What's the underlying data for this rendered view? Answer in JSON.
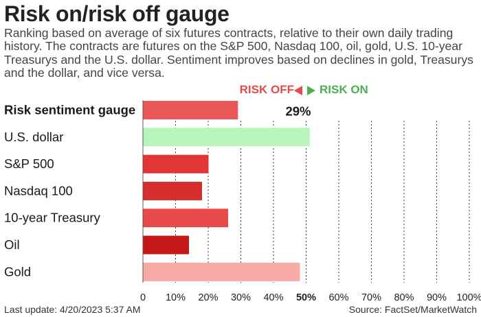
{
  "title": "Risk on/risk off gauge",
  "subtitle": "Ranking based on average of six futures contracts, relative to their own daily trading history. The contracts are futures on the S&P 500, Nasdaq 100, oil, gold, U.S. 10-year Treasurys and the U.S. dollar. Sentiment improves based on declines in gold, Treasurys and the dollar, and vice versa.",
  "legend": {
    "risk_off": "RISK OFF",
    "risk_on": "RISK ON"
  },
  "footer": {
    "last_update": "Last update: 4/20/2023 5:37 AM",
    "source": "Source: FactSet/MarketWatch"
  },
  "chart_data": {
    "type": "bar",
    "orientation": "horizontal",
    "categories": [
      "Risk sentiment gauge",
      "U.S. dollar",
      "S&P 500",
      "Nasdaq 100",
      "10-year Treasury",
      "Oil",
      "Gold"
    ],
    "values": [
      29,
      51,
      20,
      18,
      26,
      14,
      48
    ],
    "colors": [
      "#ea5757",
      "#b8f5bb",
      "#e23535",
      "#d42e2e",
      "#e84a4a",
      "#c41818",
      "#f7aaa6"
    ],
    "value_label": "29%",
    "ticks": [
      "0",
      "10%",
      "20%",
      "30%",
      "40%",
      "50%",
      "60%",
      "70%",
      "80%",
      "90%",
      "100%"
    ],
    "midpoint_tick_bold": "50%",
    "xlim": [
      0,
      100
    ],
    "grid": true
  }
}
